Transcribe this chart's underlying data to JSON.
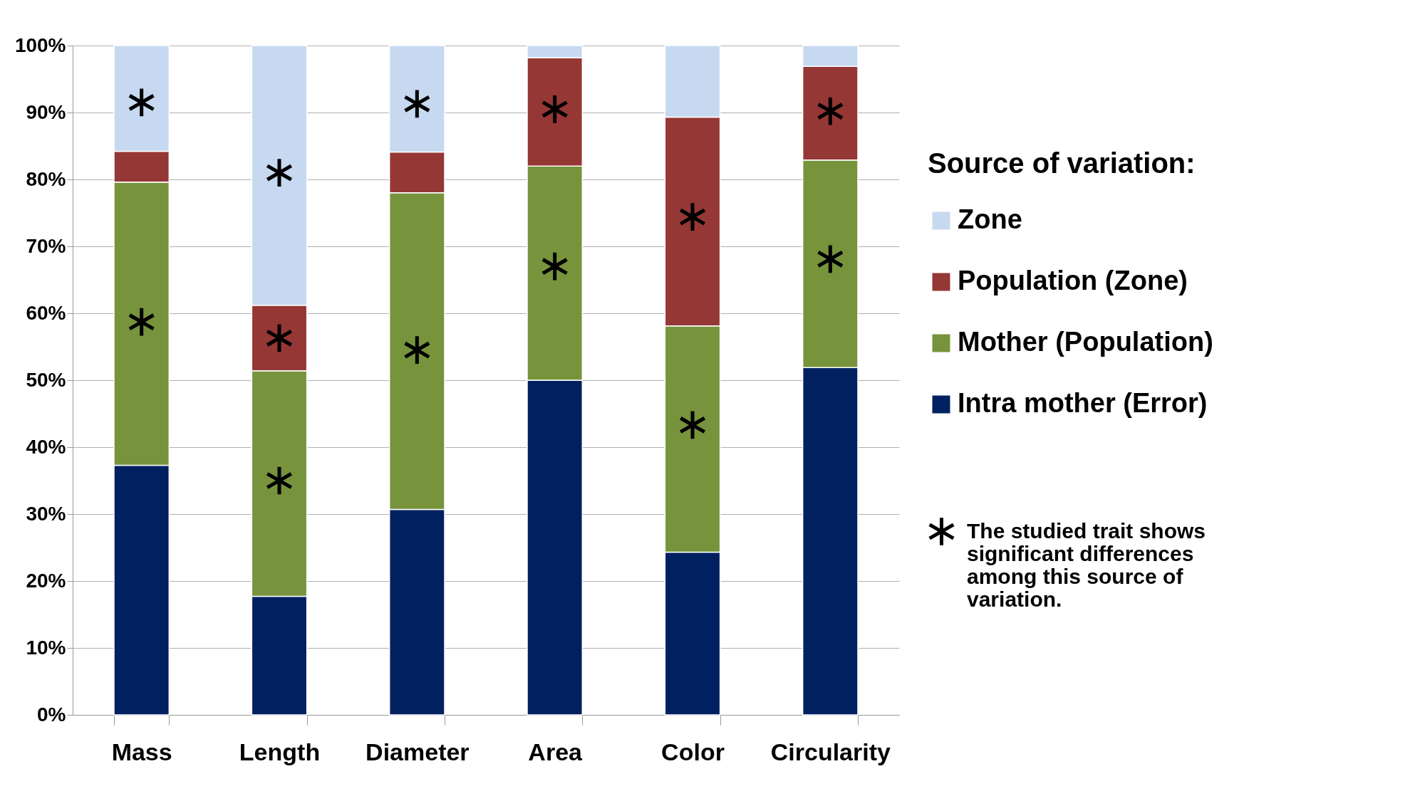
{
  "chart_data": {
    "type": "bar",
    "stacked": true,
    "categories": [
      "Mass",
      "Length",
      "Diameter",
      "Area",
      "Color",
      "Circularity"
    ],
    "series": [
      {
        "name": "Intra mother (Error)",
        "color": "#002060",
        "values": [
          37.3,
          17.7,
          30.7,
          50.0,
          24.3,
          51.9
        ]
      },
      {
        "name": "Mother (Population)",
        "color": "#77933c",
        "values": [
          42.3,
          33.7,
          47.3,
          32.0,
          33.8,
          31.0
        ]
      },
      {
        "name": "Population (Zone)",
        "color": "#953735",
        "values": [
          4.6,
          9.8,
          6.1,
          16.2,
          31.2,
          14.0
        ]
      },
      {
        "name": "Zone",
        "color": "#c6d9f1",
        "values": [
          15.8,
          38.8,
          15.9,
          1.8,
          10.7,
          3.1
        ]
      },
      {
        "name": "The studied trait shows significant differences among this source of variation.",
        "type": "scatter",
        "marker": "star",
        "color": "#000000",
        "x": [
          "Mass",
          "Mass",
          "Length",
          "Length",
          "Length",
          "Diameter",
          "Diameter",
          "Area",
          "Area",
          "Color",
          "Color",
          "Circularity",
          "Circularity"
        ],
        "values": [
          91.5,
          58.7,
          81,
          56.3,
          35,
          91.3,
          54.5,
          90.5,
          67,
          74.4,
          43.3,
          90.2,
          68.1
        ]
      }
    ],
    "legend_title": "Source of variation:",
    "legend": "right",
    "grid": "y",
    "ylim": [
      0,
      100
    ],
    "yticks": [
      {
        "value": 0,
        "label": "0%"
      },
      {
        "value": 10,
        "label": "10%"
      },
      {
        "value": 20,
        "label": "20%"
      },
      {
        "value": 30,
        "label": "30%"
      },
      {
        "value": 40,
        "label": "40%"
      },
      {
        "value": 50,
        "label": "50%"
      },
      {
        "value": 60,
        "label": "60%"
      },
      {
        "value": 70,
        "label": "70%"
      },
      {
        "value": 80,
        "label": "80%"
      },
      {
        "value": 90,
        "label": "90%"
      },
      {
        "value": 100,
        "label": "100%"
      }
    ]
  }
}
